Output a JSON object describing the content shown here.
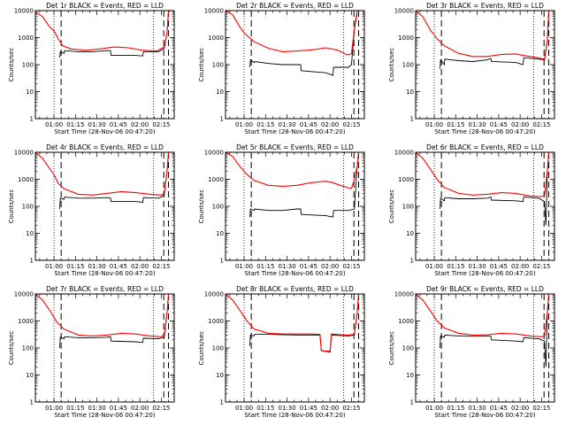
{
  "chart_data": {
    "type": "line",
    "layout": "3x3 grid of log-scale lightcurves",
    "y_axis": {
      "label": "Counts/sec",
      "scale": "log",
      "range": [
        1,
        10000
      ],
      "tick_labels": [
        "1",
        "10",
        "100",
        "1000",
        "10000"
      ]
    },
    "x_axis": {
      "label": "Start Time (28-Nov-06 00:47:20)",
      "range_minutes_after_0047": [
        0,
        97
      ],
      "tick_labels": [
        "01:00",
        "01:15",
        "01:30",
        "01:45",
        "02:00",
        "02:15"
      ]
    },
    "series_colors": {
      "events": "#000000",
      "lld": "#ff0000"
    },
    "panels": [
      {
        "title": "Det 1r BLACK = Events, RED = LLD",
        "events": [
          [
            17,
            180
          ],
          [
            17.4,
            300
          ],
          [
            20,
            260
          ],
          [
            20.4,
            330
          ],
          [
            30,
            300
          ],
          [
            40,
            300
          ],
          [
            50,
            330
          ],
          [
            52.5,
            330
          ],
          [
            52.9,
            220
          ],
          [
            70,
            220
          ],
          [
            75,
            210
          ],
          [
            75.5,
            300
          ],
          [
            86,
            300
          ],
          [
            90,
            400
          ],
          [
            92,
            1500
          ],
          [
            93,
            9000
          ],
          [
            94,
            10000
          ]
        ],
        "lld": [
          [
            0,
            9000
          ],
          [
            5,
            6000
          ],
          [
            10,
            2500
          ],
          [
            13,
            1800
          ],
          [
            16,
            900
          ],
          [
            19,
            500
          ],
          [
            25,
            380
          ],
          [
            35,
            340
          ],
          [
            45,
            380
          ],
          [
            55,
            450
          ],
          [
            65,
            420
          ],
          [
            75,
            340
          ],
          [
            85,
            320
          ],
          [
            90,
            450
          ],
          [
            92,
            1500
          ],
          [
            93,
            10000
          ]
        ],
        "dotted_lines": [
          13.0,
          82.5
        ],
        "dashed_lines": [
          18.0,
          89.7,
          93.0
        ]
      },
      {
        "title": "Det 2r BLACK = Events, RED = LLD",
        "events": [
          [
            17,
            80
          ],
          [
            17.4,
            150
          ],
          [
            20,
            120
          ],
          [
            20.4,
            130
          ],
          [
            30,
            110
          ],
          [
            40,
            100
          ],
          [
            50,
            100
          ],
          [
            52.5,
            100
          ],
          [
            52.9,
            60
          ],
          [
            70,
            50
          ],
          [
            75,
            40
          ],
          [
            75.5,
            80
          ],
          [
            86,
            80
          ],
          [
            88,
            100
          ],
          [
            90,
            2000
          ],
          [
            92,
            8000
          ]
        ],
        "lld": [
          [
            0,
            10000
          ],
          [
            5,
            7000
          ],
          [
            10,
            2500
          ],
          [
            13,
            1500
          ],
          [
            20,
            700
          ],
          [
            30,
            400
          ],
          [
            40,
            300
          ],
          [
            50,
            320
          ],
          [
            60,
            350
          ],
          [
            70,
            420
          ],
          [
            78,
            350
          ],
          [
            85,
            230
          ],
          [
            88,
            250
          ],
          [
            90,
            2000
          ],
          [
            92,
            10000
          ]
        ],
        "dotted_lines": [
          13.0,
          82.5
        ],
        "dashed_lines": [
          18.0,
          89.7,
          93.0
        ]
      },
      {
        "title": "Det 3r BLACK = Events, RED = LLD",
        "events": [
          [
            17,
            70
          ],
          [
            17.4,
            150
          ],
          [
            20,
            100
          ],
          [
            20.4,
            160
          ],
          [
            30,
            140
          ],
          [
            40,
            130
          ],
          [
            50,
            150
          ],
          [
            52.5,
            170
          ],
          [
            52.9,
            130
          ],
          [
            70,
            120
          ],
          [
            75,
            100
          ],
          [
            75.5,
            180
          ],
          [
            86,
            160
          ],
          [
            90,
            150
          ],
          [
            92,
            800
          ],
          [
            93,
            8000
          ]
        ],
        "lld": [
          [
            0,
            10000
          ],
          [
            5,
            6000
          ],
          [
            10,
            2000
          ],
          [
            15,
            900
          ],
          [
            20,
            500
          ],
          [
            30,
            260
          ],
          [
            40,
            200
          ],
          [
            50,
            200
          ],
          [
            60,
            240
          ],
          [
            70,
            250
          ],
          [
            75,
            220
          ],
          [
            85,
            180
          ],
          [
            90,
            160
          ],
          [
            92,
            800
          ],
          [
            93,
            10000
          ]
        ],
        "dotted_lines": [
          13.0,
          82.5
        ],
        "dashed_lines": [
          18.0,
          89.7,
          93.0
        ]
      },
      {
        "title": "Det 4r BLACK = Events, RED = LLD",
        "events": [
          [
            17,
            80
          ],
          [
            17.4,
            200
          ],
          [
            20,
            180
          ],
          [
            20.4,
            220
          ],
          [
            30,
            200
          ],
          [
            40,
            200
          ],
          [
            50,
            210
          ],
          [
            52.5,
            200
          ],
          [
            52.9,
            150
          ],
          [
            70,
            150
          ],
          [
            75,
            140
          ],
          [
            75.5,
            210
          ],
          [
            86,
            200
          ],
          [
            90,
            250
          ],
          [
            92,
            2000
          ],
          [
            93,
            8000
          ]
        ],
        "lld": [
          [
            0,
            10000
          ],
          [
            5,
            6000
          ],
          [
            10,
            2500
          ],
          [
            13,
            1500
          ],
          [
            16,
            700
          ],
          [
            20,
            450
          ],
          [
            30,
            280
          ],
          [
            40,
            260
          ],
          [
            50,
            300
          ],
          [
            60,
            350
          ],
          [
            70,
            320
          ],
          [
            80,
            280
          ],
          [
            88,
            260
          ],
          [
            90,
            300
          ],
          [
            92,
            2000
          ],
          [
            93,
            10000
          ]
        ],
        "dotted_lines": [
          13.0,
          82.5
        ],
        "dashed_lines": [
          18.0,
          89.7,
          93.0
        ]
      },
      {
        "title": "Det 5r BLACK = Events, RED = LLD",
        "events": [
          [
            17,
            40
          ],
          [
            17.4,
            80
          ],
          [
            20,
            70
          ],
          [
            20.4,
            80
          ],
          [
            30,
            70
          ],
          [
            40,
            70
          ],
          [
            50,
            80
          ],
          [
            52.5,
            80
          ],
          [
            52.9,
            50
          ],
          [
            70,
            45
          ],
          [
            75,
            40
          ],
          [
            75.5,
            70
          ],
          [
            86,
            70
          ],
          [
            90,
            80
          ],
          [
            92,
            3000
          ],
          [
            93,
            9000
          ]
        ],
        "lld": [
          [
            0,
            10000
          ],
          [
            5,
            7000
          ],
          [
            10,
            3000
          ],
          [
            15,
            1500
          ],
          [
            20,
            900
          ],
          [
            30,
            600
          ],
          [
            40,
            550
          ],
          [
            50,
            600
          ],
          [
            60,
            750
          ],
          [
            70,
            850
          ],
          [
            75,
            750
          ],
          [
            80,
            600
          ],
          [
            88,
            450
          ],
          [
            90,
            1000
          ],
          [
            92,
            3000
          ],
          [
            93,
            10000
          ]
        ],
        "dotted_lines": [
          13.0,
          82.5
        ],
        "dashed_lines": [
          18.0,
          89.7,
          93.0
        ]
      },
      {
        "title": "Det 6r BLACK = Events, RED = LLD",
        "events": [
          [
            17,
            80
          ],
          [
            17.4,
            200
          ],
          [
            20,
            160
          ],
          [
            20.4,
            210
          ],
          [
            30,
            190
          ],
          [
            40,
            190
          ],
          [
            50,
            200
          ],
          [
            52.5,
            220
          ],
          [
            52.9,
            170
          ],
          [
            70,
            160
          ],
          [
            75,
            150
          ],
          [
            75.5,
            220
          ],
          [
            86,
            200
          ],
          [
            90,
            150
          ],
          [
            91,
            20
          ],
          [
            92,
            2000
          ],
          [
            93,
            9000
          ]
        ],
        "lld": [
          [
            0,
            10000
          ],
          [
            5,
            6000
          ],
          [
            10,
            2500
          ],
          [
            15,
            1000
          ],
          [
            20,
            500
          ],
          [
            30,
            300
          ],
          [
            40,
            260
          ],
          [
            50,
            280
          ],
          [
            60,
            320
          ],
          [
            70,
            300
          ],
          [
            80,
            240
          ],
          [
            88,
            230
          ],
          [
            90,
            250
          ],
          [
            92,
            2000
          ],
          [
            93,
            10000
          ]
        ],
        "dotted_lines": [
          13.0,
          82.5
        ],
        "dashed_lines": [
          18.0,
          89.7,
          93.0
        ]
      },
      {
        "title": "Det 7r BLACK = Events, RED = LLD",
        "events": [
          [
            17,
            100
          ],
          [
            17.4,
            250
          ],
          [
            20,
            220
          ],
          [
            20.4,
            260
          ],
          [
            30,
            240
          ],
          [
            40,
            240
          ],
          [
            50,
            250
          ],
          [
            52.5,
            260
          ],
          [
            52.9,
            180
          ],
          [
            70,
            170
          ],
          [
            75,
            160
          ],
          [
            75.5,
            230
          ],
          [
            86,
            220
          ],
          [
            90,
            250
          ],
          [
            92,
            2000
          ],
          [
            93,
            9000
          ]
        ],
        "lld": [
          [
            0,
            10000
          ],
          [
            5,
            6000
          ],
          [
            10,
            2500
          ],
          [
            15,
            900
          ],
          [
            20,
            500
          ],
          [
            30,
            300
          ],
          [
            40,
            280
          ],
          [
            50,
            300
          ],
          [
            60,
            350
          ],
          [
            70,
            330
          ],
          [
            80,
            280
          ],
          [
            88,
            260
          ],
          [
            90,
            300
          ],
          [
            92,
            2000
          ],
          [
            93,
            10000
          ]
        ],
        "dotted_lines": [
          13.0,
          82.5
        ],
        "dashed_lines": [
          18.0,
          89.7,
          93.0
        ]
      },
      {
        "title": "Det 8r BLACK = Events, RED = LLD",
        "events": [
          [
            17,
            120
          ],
          [
            17.4,
            300
          ],
          [
            20,
            280
          ],
          [
            20.4,
            320
          ],
          [
            30,
            320
          ],
          [
            40,
            310
          ],
          [
            50,
            300
          ],
          [
            60,
            300
          ],
          [
            66,
            300
          ],
          [
            67,
            80
          ],
          [
            73,
            70
          ],
          [
            74,
            300
          ],
          [
            80,
            290
          ],
          [
            86,
            280
          ],
          [
            90,
            300
          ],
          [
            92,
            2000
          ],
          [
            93,
            9000
          ]
        ],
        "lld": [
          [
            0,
            10000
          ],
          [
            5,
            6000
          ],
          [
            10,
            2500
          ],
          [
            15,
            1000
          ],
          [
            20,
            500
          ],
          [
            30,
            350
          ],
          [
            40,
            330
          ],
          [
            50,
            330
          ],
          [
            60,
            330
          ],
          [
            66,
            320
          ],
          [
            67,
            80
          ],
          [
            73,
            75
          ],
          [
            74,
            330
          ],
          [
            80,
            310
          ],
          [
            86,
            300
          ],
          [
            90,
            320
          ],
          [
            92,
            2000
          ],
          [
            93,
            10000
          ]
        ],
        "dotted_lines": [
          13.0,
          82.5
        ],
        "dashed_lines": [
          18.0,
          89.7,
          93.0
        ]
      },
      {
        "title": "Det 9r BLACK = Events, RED = LLD",
        "events": [
          [
            17,
            100
          ],
          [
            17.4,
            280
          ],
          [
            20,
            250
          ],
          [
            20.4,
            300
          ],
          [
            30,
            280
          ],
          [
            40,
            270
          ],
          [
            50,
            280
          ],
          [
            52.5,
            280
          ],
          [
            52.9,
            200
          ],
          [
            70,
            180
          ],
          [
            75,
            170
          ],
          [
            75.5,
            240
          ],
          [
            86,
            220
          ],
          [
            90,
            180
          ],
          [
            91,
            20
          ],
          [
            92,
            2000
          ],
          [
            93,
            9000
          ]
        ],
        "lld": [
          [
            0,
            10000
          ],
          [
            5,
            6000
          ],
          [
            10,
            2500
          ],
          [
            15,
            1000
          ],
          [
            20,
            550
          ],
          [
            30,
            350
          ],
          [
            40,
            300
          ],
          [
            50,
            310
          ],
          [
            60,
            350
          ],
          [
            70,
            330
          ],
          [
            80,
            280
          ],
          [
            88,
            260
          ],
          [
            90,
            280
          ],
          [
            92,
            2000
          ],
          [
            93,
            10000
          ]
        ],
        "dotted_lines": [
          13.0,
          82.5
        ],
        "dashed_lines": [
          18.0,
          89.7,
          93.0
        ]
      }
    ]
  }
}
